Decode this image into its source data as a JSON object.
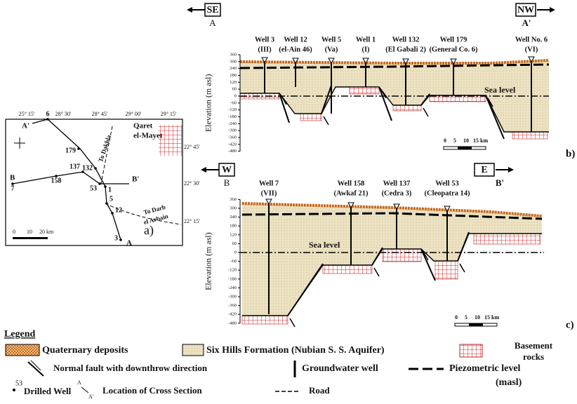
{
  "map": {
    "top_coordinates": [
      "25° 15'",
      "28° 30'",
      "28° 45'",
      "29° 00'",
      "29° 15'"
    ],
    "right_coordinates": [
      "22° 45'",
      "22° 30'",
      "22° 15'"
    ],
    "locality": [
      "Qaret",
      "el-Mayet"
    ],
    "section_a_start": "A",
    "section_a_end": "A'",
    "section_b_start": "B",
    "section_b_end": "B'",
    "wells": [
      "6",
      "179",
      "132",
      "137",
      "158",
      "7",
      "53",
      "1",
      "5",
      "12",
      "3"
    ],
    "roads": [
      "To Dakhla",
      "To Darb",
      "el Arbain"
    ],
    "scale": [
      "0",
      "10",
      "20 km"
    ],
    "panel": "a)"
  },
  "section_b": {
    "left_direction": "SE",
    "left_end": "A",
    "right_direction": "NW",
    "right_end": "A'",
    "wells": [
      {
        "name": "Well 3",
        "id": "(III)"
      },
      {
        "name": "Well 12",
        "id": "(el-Ain 46)"
      },
      {
        "name": "Well 5",
        "id": "(Va)"
      },
      {
        "name": "Well 1",
        "id": "(I)"
      },
      {
        "name": "Well 132",
        "id": "(El Gabali 2)"
      },
      {
        "name": "Well 179",
        "id": "(General Co. 6)"
      },
      {
        "name": "Well No. 6",
        "id": "(VI)"
      }
    ],
    "y_axis_label": "Elevation (m asl)",
    "yticks": [
      360,
      300,
      240,
      180,
      120,
      60,
      0,
      -60,
      -120,
      -180,
      -240,
      -300,
      -360,
      -420,
      -480
    ],
    "sea_level": "Sea level",
    "scale": [
      "0",
      "5",
      "10",
      "15 km"
    ],
    "panel": "b)"
  },
  "section_c": {
    "left_direction": "W",
    "left_end": "B",
    "right_direction": "E",
    "right_end": "B'",
    "wells": [
      {
        "name": "Well 7",
        "id": "(VII)"
      },
      {
        "name": "Well 158",
        "id": "(Awkaf 21)"
      },
      {
        "name": "Well 137",
        "id": "(Cedra 3)"
      },
      {
        "name": "Well 53",
        "id": "(Cleopatra 14)"
      }
    ],
    "y_axis_label": "Elevation (m asl)",
    "yticks": [
      360,
      300,
      240,
      180,
      120,
      60,
      0,
      -60,
      -120,
      -180,
      -240,
      -300,
      -360,
      -420,
      -480
    ],
    "sea_level": "Sea level",
    "scale": [
      "0",
      "5",
      "10",
      "15 km"
    ],
    "panel": "c)"
  },
  "legend": {
    "title": "Legend",
    "quaternary": "Quaternary deposits",
    "formation": "Six Hills Formation (Nubian S. S. Aquifer)",
    "basement": [
      "Basement",
      "rocks"
    ],
    "fault": "Normal fault with downthrow direction",
    "well": "Groundwater well",
    "piezometric": [
      "Piezometric level",
      "(masl)"
    ],
    "drilled_well": "Drilled Well",
    "drilled_example": "53",
    "section": "Location of Cross Section",
    "section_example": [
      "A",
      "A'"
    ],
    "road": "Road"
  }
}
